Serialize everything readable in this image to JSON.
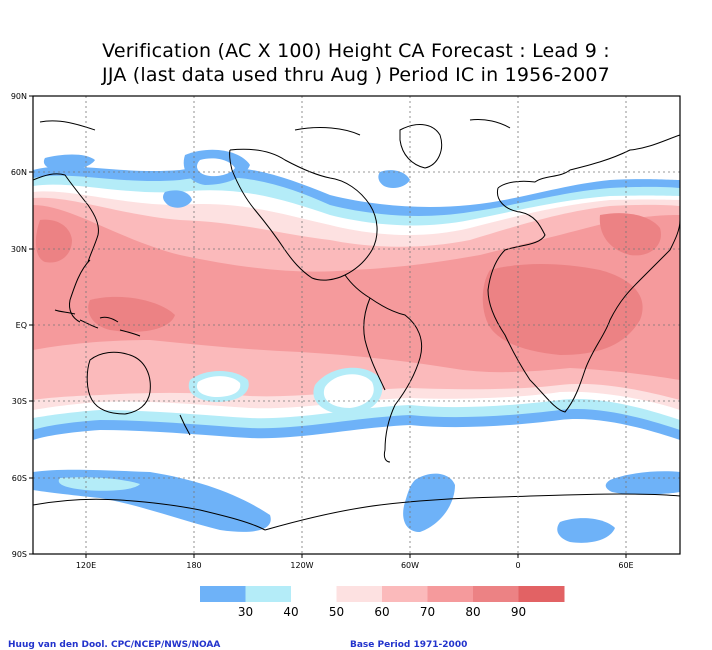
{
  "title": {
    "line1": "Verification (AC X 100) Height CA Forecast : Lead 9 :",
    "line2": "JJA (last data used thru Aug ) Period IC in 1956-2007"
  },
  "map": {
    "projection": "cylindrical equidistant",
    "lon_range": [
      90,
      450
    ],
    "lat_range": [
      -90,
      90
    ],
    "lat_ticks": [
      "90N",
      "60N",
      "30N",
      "EQ",
      "30S",
      "60S",
      "90S"
    ],
    "lon_ticks": [
      "120E",
      "180",
      "120W",
      "60W",
      "0",
      "60E"
    ],
    "grid": "dotted 30-degree graticule"
  },
  "legend": {
    "labels": [
      "30",
      "40",
      "50",
      "60",
      "70",
      "80",
      "90"
    ],
    "colors": [
      "#6eb2f8",
      "#b4ecf8",
      "#ffffff",
      "#fde1e1",
      "#fbbabb",
      "#f59a9c",
      "#ec8284",
      "#e26264"
    ]
  },
  "footer": {
    "credit": "Huug van den Dool. CPC/NCEP/NWS/NOAA",
    "base_period": "Base Period 1971-2000"
  }
}
